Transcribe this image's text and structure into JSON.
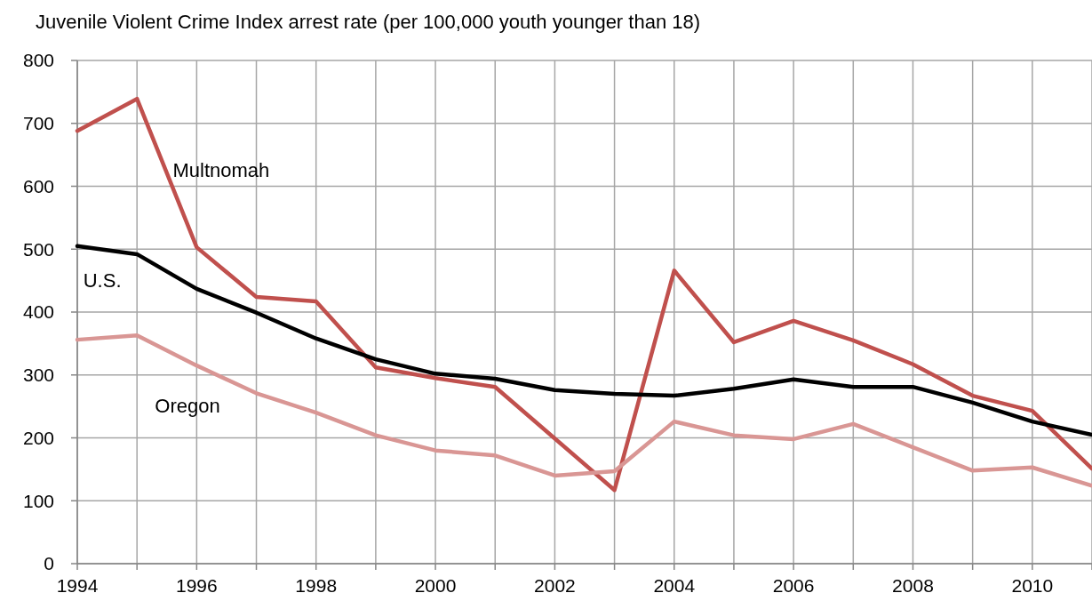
{
  "chart_data": {
    "type": "line",
    "title": "Juvenile Violent Crime Index arrest rate (per 100,000  youth younger than 18)",
    "x": [
      1994,
      1995,
      1996,
      1997,
      1998,
      1999,
      2000,
      2001,
      2002,
      2003,
      2004,
      2005,
      2006,
      2007,
      2008,
      2009,
      2010,
      2011
    ],
    "series": [
      {
        "name": "Multnomah",
        "color": "#c0504d",
        "values": [
          688,
          739,
          503,
          424,
          417,
          312,
          295,
          281,
          199,
          117,
          466,
          352,
          386,
          355,
          317,
          267,
          243,
          151
        ]
      },
      {
        "name": "U.S.",
        "color": "#000000",
        "values": [
          505,
          492,
          437,
          399,
          358,
          325,
          302,
          294,
          276,
          270,
          267,
          278,
          293,
          281,
          281,
          256,
          226,
          205
        ]
      },
      {
        "name": "Oregon",
        "color": "#d99694",
        "values": [
          356,
          363,
          315,
          271,
          240,
          204,
          180,
          172,
          140,
          147,
          226,
          204,
          198,
          222,
          185,
          148,
          153,
          124
        ]
      }
    ],
    "xlim": [
      1994,
      2011
    ],
    "xticks": [
      1994,
      {
        "value": 1995,
        "label": null
      },
      1996,
      {
        "value": 1997,
        "label": null
      },
      1998,
      {
        "value": 1999,
        "label": null
      },
      2000,
      {
        "value": 2001,
        "label": null
      },
      2002,
      {
        "value": 2003,
        "label": null
      },
      2004,
      {
        "value": 2005,
        "label": null
      },
      2006,
      {
        "value": 2007,
        "label": null
      },
      2008,
      {
        "value": 2009,
        "label": null
      },
      2010,
      {
        "value": 2011,
        "label": null
      }
    ],
    "ylim": [
      0,
      800
    ],
    "yticks": [
      0,
      100,
      200,
      300,
      400,
      500,
      600,
      700,
      800
    ],
    "grid": true,
    "legend": false,
    "marker": "none",
    "line_style": "solid"
  }
}
